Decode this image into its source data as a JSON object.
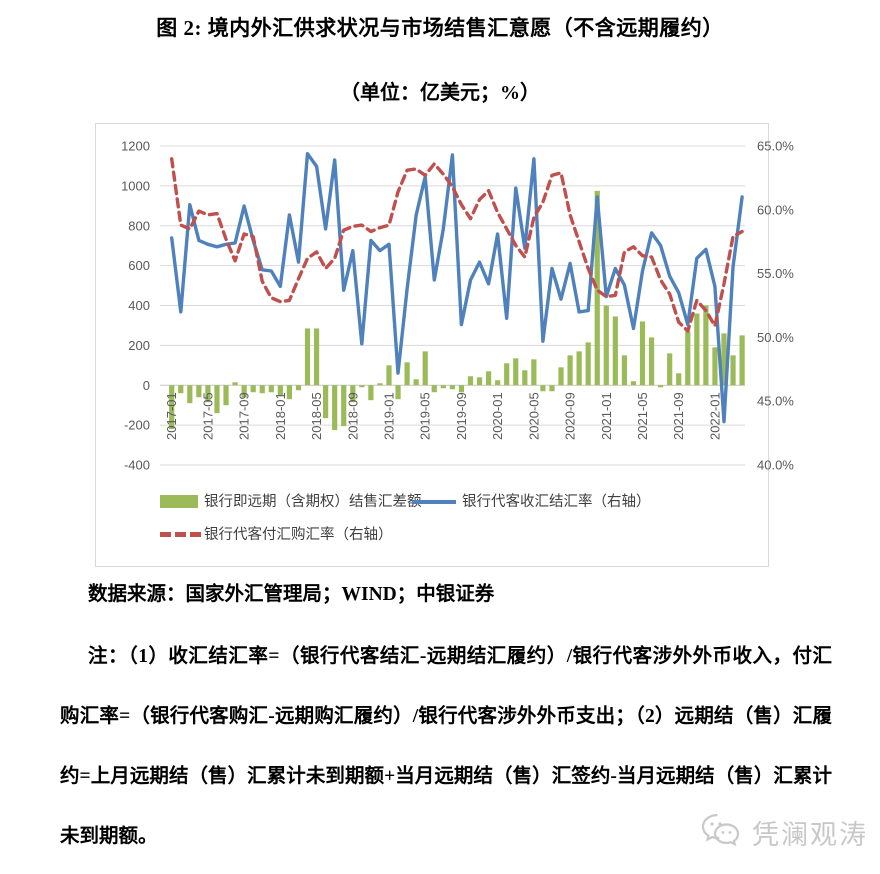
{
  "title": "图 2: 境内外汇供求状况与市场结售汇意愿（不含远期履约）",
  "subtitle": "（单位：亿美元；%）",
  "legend": {
    "bar_label": "银行即远期（含期权）结售汇差额",
    "blue_label": "银行代客收汇结汇率（右轴）",
    "red_label": "银行代客付汇购汇率（右轴）"
  },
  "source": "数据来源：国家外汇管理局；WIND；中银证券",
  "notes": "注：（1）收汇结汇率=（银行代客结汇-远期结汇履约）/银行代客涉外外币收入，付汇购汇率=（银行代客购汇-远期购汇履约）/银行代客涉外外币支出；（2）远期结（售）汇履约=上月远期结（售）汇累计未到期额+当月远期结（售）汇签约-当月远期结（售）汇累计未到期额。",
  "watermark": "凭澜观涛",
  "colors": {
    "bar": "#9BBB59",
    "blue": "#4F81BD",
    "red": "#C0504D",
    "grid": "#D9D9D9",
    "zero_axis": "#C6C6C6",
    "axis_text": "#595959",
    "watermark": "#C8C8C8"
  },
  "chart_data": {
    "type": "bar-line-combo",
    "x_tick_every": 4,
    "grid": true,
    "legend_position": "bottom",
    "left_axis": {
      "min": -400,
      "max": 1200,
      "step": 200,
      "unit": "亿美元"
    },
    "right_axis": {
      "min": 40,
      "max": 65,
      "step": 5,
      "unit": "%",
      "format": "percent1"
    },
    "months": [
      "2017-01",
      "2017-02",
      "2017-03",
      "2017-04",
      "2017-05",
      "2017-06",
      "2017-07",
      "2017-08",
      "2017-09",
      "2017-10",
      "2017-11",
      "2017-12",
      "2018-01",
      "2018-02",
      "2018-03",
      "2018-04",
      "2018-05",
      "2018-06",
      "2018-07",
      "2018-08",
      "2018-09",
      "2018-10",
      "2018-11",
      "2018-12",
      "2019-01",
      "2019-02",
      "2019-03",
      "2019-04",
      "2019-05",
      "2019-06",
      "2019-07",
      "2019-08",
      "2019-09",
      "2019-10",
      "2019-11",
      "2019-12",
      "2020-01",
      "2020-02",
      "2020-03",
      "2020-04",
      "2020-05",
      "2020-06",
      "2020-07",
      "2020-08",
      "2020-09",
      "2020-10",
      "2020-11",
      "2020-12",
      "2021-01",
      "2021-02",
      "2021-03",
      "2021-04",
      "2021-05",
      "2021-06",
      "2021-07",
      "2021-08",
      "2021-09",
      "2021-10",
      "2021-11",
      "2021-12",
      "2022-01",
      "2022-02",
      "2022-03",
      "2022-04"
    ],
    "bar_series": {
      "name": "银行即远期（含期权）结售汇差额",
      "axis": "left",
      "values": [
        -220,
        -40,
        -90,
        -60,
        -85,
        -140,
        -100,
        15,
        -60,
        -35,
        -40,
        -35,
        -50,
        -70,
        -25,
        285,
        285,
        -165,
        -225,
        -205,
        -85,
        -10,
        -75,
        10,
        100,
        -70,
        115,
        30,
        170,
        -35,
        -15,
        -20,
        -35,
        45,
        40,
        70,
        25,
        110,
        135,
        75,
        130,
        -30,
        -30,
        90,
        150,
        170,
        215,
        975,
        400,
        345,
        150,
        20,
        320,
        240,
        -10,
        160,
        60,
        270,
        360,
        400,
        190,
        260,
        150,
        250
      ]
    },
    "line_series": [
      {
        "name": "银行代客收汇结汇率（右轴）",
        "axis": "right",
        "dashed": false,
        "values": [
          57.8,
          52.0,
          60.4,
          57.6,
          57.3,
          57.1,
          57.3,
          57.4,
          60.3,
          57.6,
          55.3,
          55.2,
          54.0,
          59.6,
          55.9,
          64.4,
          63.4,
          58.5,
          63.9,
          53.7,
          56.8,
          49.5,
          57.6,
          56.8,
          57.3,
          47.2,
          53.8,
          59.6,
          62.6,
          54.5,
          58.5,
          64.3,
          51.0,
          54.5,
          55.9,
          54.2,
          58.1,
          51.5,
          61.7,
          57.0,
          64.0,
          49.7,
          55.4,
          53.0,
          55.8,
          52.0,
          52.1,
          61.0,
          53.2,
          55.4,
          54.1,
          50.7,
          55.2,
          58.2,
          57.2,
          54.8,
          53.5,
          51.0,
          56.2,
          56.9,
          54.0,
          43.4,
          55.5,
          61.0
        ]
      },
      {
        "name": "银行代客付汇购汇率（右轴）",
        "axis": "right",
        "dashed": true,
        "values": [
          64.0,
          58.8,
          58.5,
          59.9,
          59.6,
          59.7,
          57.7,
          56.0,
          58.1,
          57.9,
          54.4,
          53.1,
          52.8,
          52.9,
          54.6,
          56.2,
          56.7,
          55.4,
          56.2,
          58.4,
          58.7,
          58.8,
          58.3,
          58.6,
          58.8,
          61.4,
          63.1,
          63.2,
          62.7,
          63.6,
          62.8,
          61.8,
          60.4,
          59.3,
          60.8,
          61.5,
          59.8,
          58.5,
          57.2,
          56.3,
          59.4,
          60.6,
          62.7,
          62.9,
          59.6,
          57.5,
          55.4,
          53.7,
          53.2,
          53.3,
          56.7,
          57.1,
          56.4,
          56.3,
          54.5,
          53.4,
          51.2,
          50.5,
          52.9,
          52.1,
          50.9,
          54.2,
          57.9,
          58.3
        ]
      }
    ]
  }
}
